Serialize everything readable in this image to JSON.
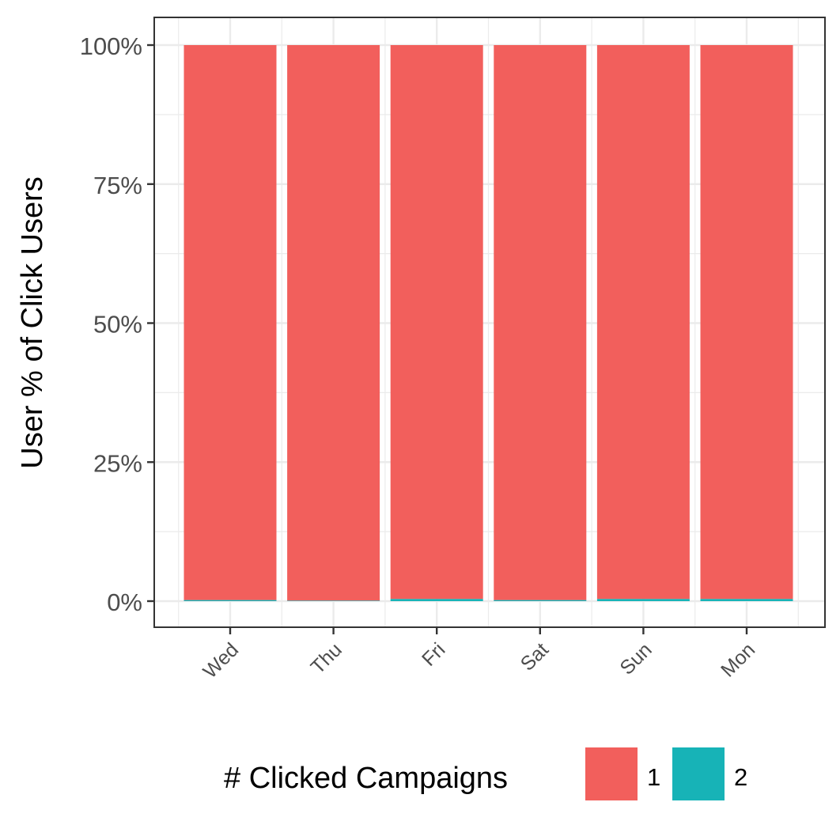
{
  "chart_data": {
    "type": "bar",
    "stacked": true,
    "categories": [
      "Wed",
      "Thu",
      "Fri",
      "Sat",
      "Sun",
      "Mon"
    ],
    "series": [
      {
        "name": "1",
        "color": "#F25F5C",
        "values": [
          99.8,
          99.9,
          99.6,
          99.8,
          99.6,
          99.6
        ]
      },
      {
        "name": "2",
        "color": "#17B3B7",
        "values": [
          0.2,
          0.1,
          0.4,
          0.2,
          0.4,
          0.4
        ]
      }
    ],
    "ylabel": "User % of Click Users",
    "xlabel": "",
    "ylim": [
      0,
      100
    ],
    "yticks": [
      "0%",
      "25%",
      "50%",
      "75%",
      "100%"
    ],
    "ytick_values": [
      0,
      25,
      50,
      75,
      100
    ],
    "legend_title": "# Clicked Campaigns",
    "legend_position": "bottom",
    "grid": true
  }
}
